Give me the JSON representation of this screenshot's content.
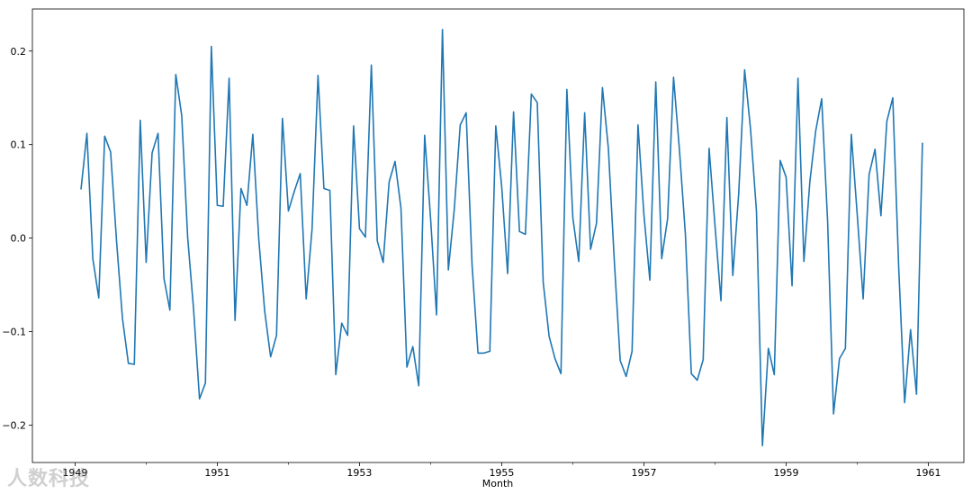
{
  "chart_data": {
    "type": "line",
    "title": "",
    "xlabel": "Month",
    "ylabel": "",
    "xlim": [
      1948.4,
      1961.5
    ],
    "ylim": [
      -0.24,
      0.245
    ],
    "grid": false,
    "legend": "none",
    "line_color": "#1f77b4",
    "x_ticks": [
      1949,
      1951,
      1953,
      1955,
      1957,
      1959,
      1961
    ],
    "x_tick_labels": [
      "1949",
      "1951",
      "1953",
      "1955",
      "1957",
      "1959",
      "1961"
    ],
    "y_ticks": [
      -0.2,
      -0.1,
      0.0,
      0.1,
      0.2
    ],
    "y_tick_labels": [
      "−0.2",
      "−0.1",
      "0.0",
      "0.1",
      "0.2"
    ],
    "x_start": "1949-02",
    "series": [
      {
        "values": [
          0.052,
          0.112,
          -0.022,
          -0.064,
          0.109,
          0.092,
          -0.003,
          -0.086,
          -0.134,
          -0.135,
          0.126,
          -0.026,
          0.091,
          0.112,
          -0.043,
          -0.077,
          0.175,
          0.131,
          0.001,
          -0.076,
          -0.172,
          -0.155,
          0.205,
          0.035,
          0.034,
          0.171,
          -0.088,
          0.053,
          0.035,
          0.111,
          -0.001,
          -0.078,
          -0.127,
          -0.104,
          0.128,
          0.029,
          0.05,
          0.069,
          -0.065,
          0.01,
          0.174,
          0.053,
          0.051,
          -0.146,
          -0.091,
          -0.104,
          0.12,
          0.01,
          0.001,
          0.185,
          -0.003,
          -0.026,
          0.06,
          0.082,
          0.032,
          -0.138,
          -0.116,
          -0.158,
          0.11,
          0.021,
          -0.082,
          0.223,
          -0.034,
          0.031,
          0.121,
          0.134,
          -0.029,
          -0.123,
          -0.123,
          -0.121,
          0.12,
          0.055,
          -0.038,
          0.135,
          0.007,
          0.004,
          0.154,
          0.145,
          -0.047,
          -0.105,
          -0.129,
          -0.145,
          0.159,
          0.022,
          -0.025,
          0.134,
          -0.012,
          0.016,
          0.161,
          0.096,
          -0.024,
          -0.131,
          -0.148,
          -0.121,
          0.121,
          0.025,
          -0.045,
          0.167,
          -0.022,
          0.021,
          0.172,
          0.094,
          0.004,
          -0.145,
          -0.152,
          -0.13,
          0.096,
          0.013,
          -0.067,
          0.129,
          -0.04,
          0.048,
          0.18,
          0.116,
          0.028,
          -0.222,
          -0.118,
          -0.146,
          0.083,
          0.065,
          -0.051,
          0.171,
          -0.025,
          0.06,
          0.115,
          0.149,
          0.018,
          -0.188,
          -0.129,
          -0.118,
          0.111,
          0.025,
          -0.065,
          0.068,
          0.095,
          0.024,
          0.125,
          0.15,
          -0.032,
          -0.176,
          -0.098,
          -0.167,
          0.102
        ]
      }
    ]
  },
  "watermark": "人数科技"
}
